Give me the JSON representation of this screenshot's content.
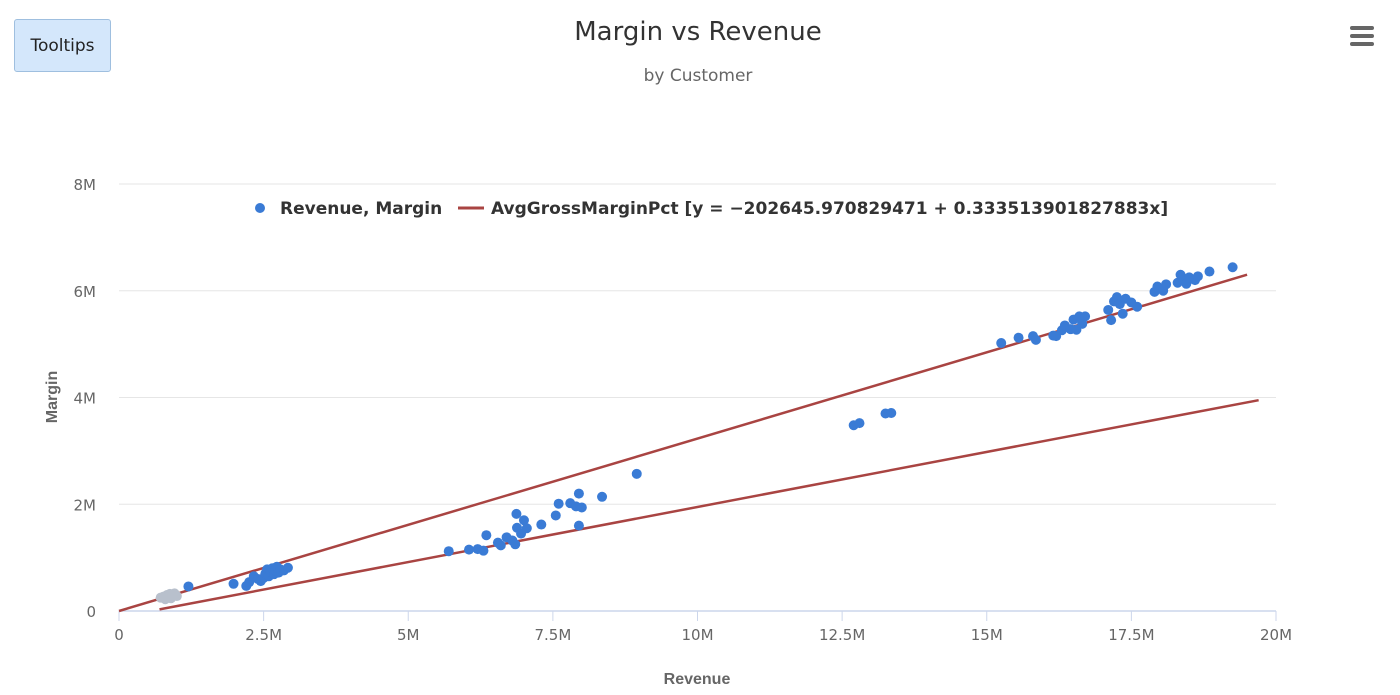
{
  "toolbar": {
    "tooltips_label": "Tooltips"
  },
  "menu": {
    "icon": "hamburger-icon"
  },
  "colors": {
    "points": "#3a7bd5",
    "points_faded": "#b8c0cc",
    "lines": "#a94442",
    "grid": "#e6e6e6",
    "axis": "#ccd6eb"
  },
  "chart_data": {
    "type": "scatter",
    "title": "Margin vs Revenue",
    "subtitle": "by Customer",
    "xlabel": "Revenue",
    "ylabel": "Margin",
    "xlim": [
      0,
      20000000
    ],
    "ylim": [
      0,
      8000000
    ],
    "x_ticks": [
      {
        "value": 0,
        "label": "0"
      },
      {
        "value": 2500000,
        "label": "2.5M"
      },
      {
        "value": 5000000,
        "label": "5M"
      },
      {
        "value": 7500000,
        "label": "7.5M"
      },
      {
        "value": 10000000,
        "label": "10M"
      },
      {
        "value": 12500000,
        "label": "12.5M"
      },
      {
        "value": 15000000,
        "label": "15M"
      },
      {
        "value": 17500000,
        "label": "17.5M"
      },
      {
        "value": 20000000,
        "label": "20M"
      }
    ],
    "y_ticks": [
      {
        "value": 0,
        "label": "0"
      },
      {
        "value": 2000000,
        "label": "2M"
      },
      {
        "value": 4000000,
        "label": "4M"
      },
      {
        "value": 6000000,
        "label": "6M"
      },
      {
        "value": 8000000,
        "label": "8M"
      }
    ],
    "legend": {
      "placement": "top",
      "items": [
        {
          "label": "Revenue, Margin",
          "kind": "point"
        },
        {
          "label": "AvgGrossMarginPct [y = −202645.970829471 + 0.333513901827883x]",
          "kind": "line"
        }
      ]
    },
    "series": [
      {
        "name": "Revenue, Margin",
        "points": [
          [
            720000,
            250000
          ],
          [
            770000,
            270000
          ],
          [
            800000,
            220000
          ],
          [
            830000,
            300000
          ],
          [
            860000,
            260000
          ],
          [
            880000,
            320000
          ],
          [
            900000,
            240000
          ],
          [
            930000,
            290000
          ],
          [
            960000,
            330000
          ],
          [
            1000000,
            280000
          ],
          [
            1200000,
            460000
          ],
          [
            1980000,
            510000
          ],
          [
            2200000,
            470000
          ],
          [
            2250000,
            540000
          ],
          [
            2330000,
            650000
          ],
          [
            2400000,
            600000
          ],
          [
            2450000,
            560000
          ],
          [
            2500000,
            620000
          ],
          [
            2530000,
            700000
          ],
          [
            2560000,
            780000
          ],
          [
            2590000,
            650000
          ],
          [
            2620000,
            730000
          ],
          [
            2650000,
            800000
          ],
          [
            2680000,
            690000
          ],
          [
            2700000,
            760000
          ],
          [
            2730000,
            830000
          ],
          [
            2760000,
            720000
          ],
          [
            2790000,
            780000
          ],
          [
            2850000,
            760000
          ],
          [
            2920000,
            810000
          ],
          [
            5700000,
            1120000
          ],
          [
            6050000,
            1150000
          ],
          [
            6200000,
            1160000
          ],
          [
            6300000,
            1130000
          ],
          [
            6350000,
            1420000
          ],
          [
            6550000,
            1280000
          ],
          [
            6600000,
            1230000
          ],
          [
            6700000,
            1380000
          ],
          [
            6800000,
            1320000
          ],
          [
            6850000,
            1250000
          ],
          [
            6870000,
            1820000
          ],
          [
            6880000,
            1560000
          ],
          [
            6950000,
            1450000
          ],
          [
            7000000,
            1700000
          ],
          [
            7050000,
            1550000
          ],
          [
            7300000,
            1620000
          ],
          [
            7550000,
            1790000
          ],
          [
            7600000,
            2010000
          ],
          [
            7800000,
            2020000
          ],
          [
            7900000,
            1960000
          ],
          [
            7950000,
            2200000
          ],
          [
            8000000,
            1940000
          ],
          [
            7950000,
            1600000
          ],
          [
            8350000,
            2140000
          ],
          [
            8950000,
            2570000
          ],
          [
            12700000,
            3480000
          ],
          [
            12800000,
            3520000
          ],
          [
            13250000,
            3700000
          ],
          [
            13350000,
            3710000
          ],
          [
            15250000,
            5020000
          ],
          [
            15550000,
            5120000
          ],
          [
            15800000,
            5150000
          ],
          [
            15850000,
            5080000
          ],
          [
            16150000,
            5160000
          ],
          [
            16200000,
            5150000
          ],
          [
            16300000,
            5260000
          ],
          [
            16350000,
            5350000
          ],
          [
            16450000,
            5280000
          ],
          [
            16500000,
            5460000
          ],
          [
            16550000,
            5270000
          ],
          [
            16600000,
            5520000
          ],
          [
            16650000,
            5380000
          ],
          [
            16700000,
            5520000
          ],
          [
            17100000,
            5640000
          ],
          [
            17150000,
            5450000
          ],
          [
            17200000,
            5800000
          ],
          [
            17250000,
            5880000
          ],
          [
            17300000,
            5750000
          ],
          [
            17350000,
            5570000
          ],
          [
            17400000,
            5850000
          ],
          [
            17500000,
            5780000
          ],
          [
            17600000,
            5700000
          ],
          [
            17900000,
            5980000
          ],
          [
            17950000,
            6080000
          ],
          [
            18050000,
            6000000
          ],
          [
            18100000,
            6120000
          ],
          [
            18300000,
            6150000
          ],
          [
            18350000,
            6300000
          ],
          [
            18400000,
            6200000
          ],
          [
            18450000,
            6130000
          ],
          [
            18500000,
            6250000
          ],
          [
            18600000,
            6200000
          ],
          [
            18650000,
            6270000
          ],
          [
            18850000,
            6360000
          ],
          [
            19250000,
            6440000
          ]
        ],
        "faded_count": 10
      },
      {
        "name": "AvgGrossMarginPct",
        "points": [
          [
            0,
            0
          ],
          [
            19500000,
            6300000
          ]
        ]
      },
      {
        "name": "AvgGrossMarginPct",
        "points": [
          [
            700000,
            30000
          ],
          [
            19700000,
            3950000
          ]
        ]
      }
    ]
  }
}
